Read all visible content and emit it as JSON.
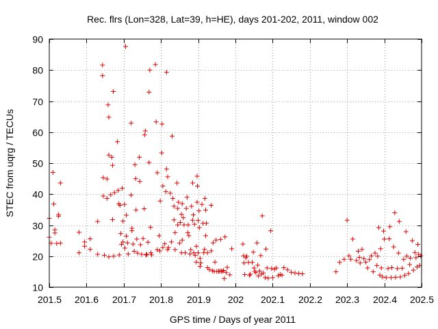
{
  "chart_data": {
    "type": "scatter",
    "title": "Rec. flrs (Lon=328, Lat=39, h=HE), days 201-202, 2011, window 002",
    "xlabel": "GPS time / Days of year 2011",
    "ylabel": "STEC from uqrg / TECUs",
    "xlim": [
      201.5,
      202.5
    ],
    "ylim": [
      10,
      90
    ],
    "xticks": [
      201.5,
      201.6,
      201.7,
      201.8,
      201.9,
      202.0,
      202.1,
      202.2,
      202.3,
      202.4,
      202.5
    ],
    "xtick_labels": [
      "201.5",
      "201.6",
      "201.7",
      "201.8",
      "201.9",
      "202",
      "202.1",
      "202.2",
      "202.3",
      "202.4",
      "202.5"
    ],
    "yticks": [
      10,
      20,
      30,
      40,
      50,
      60,
      70,
      80,
      90
    ],
    "ytick_labels": [
      "10",
      "20",
      "30",
      "40",
      "50",
      "60",
      "70",
      "80",
      "90"
    ],
    "grid": true,
    "marker": "+",
    "color": "#dd0000",
    "series": [
      {
        "name": "STEC",
        "points": [
          [
            201.5,
            32.2
          ],
          [
            201.5,
            26.1
          ],
          [
            201.505,
            24.2
          ],
          [
            201.51,
            47.0
          ],
          [
            201.512,
            36.8
          ],
          [
            201.515,
            28.5
          ],
          [
            201.515,
            27.5
          ],
          [
            201.52,
            24.1
          ],
          [
            201.525,
            33.4
          ],
          [
            201.525,
            32.9
          ],
          [
            201.53,
            43.6
          ],
          [
            201.53,
            24.2
          ],
          [
            201.58,
            27.7
          ],
          [
            201.58,
            21.1
          ],
          [
            201.595,
            24.6
          ],
          [
            201.595,
            23.2
          ],
          [
            201.61,
            25.6
          ],
          [
            201.61,
            22.2
          ],
          [
            201.63,
            31.2
          ],
          [
            201.63,
            20.6
          ],
          [
            201.643,
            81.6
          ],
          [
            201.643,
            78.2
          ],
          [
            201.645,
            45.3
          ],
          [
            201.645,
            39.4
          ],
          [
            201.648,
            20.3
          ],
          [
            201.655,
            44.9
          ],
          [
            201.655,
            38.6
          ],
          [
            201.658,
            68.8
          ],
          [
            201.66,
            64.8
          ],
          [
            201.66,
            52.6
          ],
          [
            201.66,
            19.8
          ],
          [
            201.665,
            39.8
          ],
          [
            201.668,
            51.9
          ],
          [
            201.67,
            49.3
          ],
          [
            201.67,
            31.8
          ],
          [
            201.672,
            73.1
          ],
          [
            201.673,
            20.0
          ],
          [
            201.675,
            40.5
          ],
          [
            201.683,
            56.9
          ],
          [
            201.685,
            41.2
          ],
          [
            201.687,
            36.9
          ],
          [
            201.688,
            20.4
          ],
          [
            201.69,
            36.4
          ],
          [
            201.692,
            27.3
          ],
          [
            201.694,
            23.8
          ],
          [
            201.696,
            41.9
          ],
          [
            201.698,
            31.3
          ],
          [
            201.698,
            24.6
          ],
          [
            201.702,
            36.7
          ],
          [
            201.703,
            22.6
          ],
          [
            201.705,
            87.6
          ],
          [
            201.707,
            33.2
          ],
          [
            201.707,
            26.5
          ],
          [
            201.71,
            24.3
          ],
          [
            201.712,
            20.7
          ],
          [
            201.72,
            62.9
          ],
          [
            201.72,
            39.7
          ],
          [
            201.722,
            29.0
          ],
          [
            201.722,
            28.2
          ],
          [
            201.725,
            23.9
          ],
          [
            201.728,
            21.6
          ],
          [
            201.73,
            49.5
          ],
          [
            201.732,
            45.0
          ],
          [
            201.733,
            34.9
          ],
          [
            201.735,
            25.5
          ],
          [
            201.737,
            21.0
          ],
          [
            201.742,
            51.9
          ],
          [
            201.743,
            44.1
          ],
          [
            201.745,
            23.7
          ],
          [
            201.748,
            20.6
          ],
          [
            201.752,
            25.7
          ],
          [
            201.755,
            35.3
          ],
          [
            201.756,
            59.1
          ],
          [
            201.758,
            60.4
          ],
          [
            201.76,
            20.4
          ],
          [
            201.762,
            20.6
          ],
          [
            201.765,
            24.5
          ],
          [
            201.768,
            72.9
          ],
          [
            201.768,
            50.2
          ],
          [
            201.77,
            80.0
          ],
          [
            201.772,
            29.3
          ],
          [
            201.773,
            21.1
          ],
          [
            201.775,
            20.4
          ],
          [
            201.785,
            81.8
          ],
          [
            201.787,
            63.3
          ],
          [
            201.79,
            46.9
          ],
          [
            201.79,
            22.1
          ],
          [
            201.795,
            26.6
          ],
          [
            201.797,
            21.7
          ],
          [
            201.798,
            37.8
          ],
          [
            201.802,
            53.3
          ],
          [
            201.803,
            62.6
          ],
          [
            201.805,
            42.6
          ],
          [
            201.805,
            22.8
          ],
          [
            201.81,
            24.0
          ],
          [
            201.813,
            40.8
          ],
          [
            201.815,
            79.3
          ],
          [
            201.815,
            48.1
          ],
          [
            201.818,
            45.6
          ],
          [
            201.818,
            22.1
          ],
          [
            201.82,
            22.8
          ],
          [
            201.825,
            40.3
          ],
          [
            201.828,
            24.6
          ],
          [
            201.83,
            58.7
          ],
          [
            201.832,
            38.6
          ],
          [
            201.835,
            36.1
          ],
          [
            201.835,
            31.7
          ],
          [
            201.838,
            27.6
          ],
          [
            201.838,
            22.1
          ],
          [
            201.843,
            43.6
          ],
          [
            201.845,
            35.4
          ],
          [
            201.845,
            30.1
          ],
          [
            201.847,
            37.4
          ],
          [
            201.85,
            24.2
          ],
          [
            201.852,
            30.9
          ],
          [
            201.855,
            33.5
          ],
          [
            201.855,
            21.1
          ],
          [
            201.857,
            36.9
          ],
          [
            201.857,
            25.2
          ],
          [
            201.86,
            32.4
          ],
          [
            201.862,
            30.1
          ],
          [
            201.865,
            21.1
          ],
          [
            201.868,
            35.4
          ],
          [
            201.87,
            39.0
          ],
          [
            201.872,
            27.6
          ],
          [
            201.873,
            30.1
          ],
          [
            201.875,
            26.6
          ],
          [
            201.878,
            20.7
          ],
          [
            201.88,
            22.1
          ],
          [
            201.882,
            36.1
          ],
          [
            201.885,
            31.6
          ],
          [
            201.885,
            43.6
          ],
          [
            201.887,
            33.3
          ],
          [
            201.888,
            21.1
          ],
          [
            201.89,
            30.3
          ],
          [
            201.892,
            20.3
          ],
          [
            201.895,
            18.1
          ],
          [
            201.895,
            23.2
          ],
          [
            201.897,
            45.8
          ],
          [
            201.897,
            37.4
          ],
          [
            201.898,
            42.6
          ],
          [
            201.9,
            31.5
          ],
          [
            201.9,
            21.1
          ],
          [
            201.902,
            34.6
          ],
          [
            201.903,
            29.2
          ],
          [
            201.905,
            19.3
          ],
          [
            201.905,
            16.7
          ],
          [
            201.907,
            17.8
          ],
          [
            201.91,
            36.7
          ],
          [
            201.913,
            30.6
          ],
          [
            201.915,
            21.1
          ],
          [
            201.917,
            22.2
          ],
          [
            201.918,
            38.6
          ],
          [
            201.92,
            34.9
          ],
          [
            201.92,
            26.6
          ],
          [
            201.922,
            30.6
          ],
          [
            201.925,
            21.1
          ],
          [
            201.925,
            16.3
          ],
          [
            201.93,
            15.7
          ],
          [
            201.935,
            36.4
          ],
          [
            201.935,
            21.7
          ],
          [
            201.938,
            15.3
          ],
          [
            201.94,
            24.3
          ],
          [
            201.943,
            15.1
          ],
          [
            201.945,
            18.1
          ],
          [
            201.948,
            25.2
          ],
          [
            201.95,
            15.1
          ],
          [
            201.955,
            15.1
          ],
          [
            201.958,
            15.2
          ],
          [
            201.96,
            25.4
          ],
          [
            201.962,
            15.2
          ],
          [
            201.965,
            15.1
          ],
          [
            201.968,
            15.4
          ],
          [
            201.97,
            12.8
          ],
          [
            201.972,
            26.2
          ],
          [
            201.975,
            14.7
          ],
          [
            201.978,
            16.4
          ],
          [
            201.985,
            14.0
          ],
          [
            201.99,
            22.4
          ],
          [
            202.02,
            23.9
          ],
          [
            202.022,
            20.1
          ],
          [
            202.023,
            17.8
          ],
          [
            202.025,
            14.1
          ],
          [
            202.028,
            19.5
          ],
          [
            202.03,
            20.0
          ],
          [
            202.035,
            18.0
          ],
          [
            202.038,
            13.8
          ],
          [
            202.04,
            14.2
          ],
          [
            202.045,
            18.0
          ],
          [
            202.048,
            21.3
          ],
          [
            202.05,
            16.2
          ],
          [
            202.052,
            15.1
          ],
          [
            202.055,
            14.7
          ],
          [
            202.058,
            24.3
          ],
          [
            202.06,
            17.1
          ],
          [
            202.062,
            13.6
          ],
          [
            202.065,
            15.2
          ],
          [
            202.068,
            20.2
          ],
          [
            202.07,
            14.2
          ],
          [
            202.072,
            33.0
          ],
          [
            202.075,
            14.6
          ],
          [
            202.08,
            13.1
          ],
          [
            202.082,
            22.3
          ],
          [
            202.085,
            16.2
          ],
          [
            202.088,
            12.9
          ],
          [
            202.095,
            28.2
          ],
          [
            202.097,
            16.0
          ],
          [
            202.1,
            13.1
          ],
          [
            202.105,
            15.8
          ],
          [
            202.11,
            16.2
          ],
          [
            202.115,
            13.7
          ],
          [
            202.12,
            14.1
          ],
          [
            202.125,
            13.9
          ],
          [
            202.13,
            16.3
          ],
          [
            202.14,
            15.6
          ],
          [
            202.15,
            14.8
          ],
          [
            202.16,
            14.6
          ],
          [
            202.17,
            14.4
          ],
          [
            202.18,
            14.3
          ],
          [
            202.27,
            15.0
          ],
          [
            202.28,
            18.0
          ],
          [
            202.292,
            19.0
          ],
          [
            202.3,
            31.6
          ],
          [
            202.305,
            20.1
          ],
          [
            202.31,
            19.0
          ],
          [
            202.315,
            25.5
          ],
          [
            202.325,
            18.6
          ],
          [
            202.33,
            21.6
          ],
          [
            202.333,
            19.6
          ],
          [
            202.335,
            17.8
          ],
          [
            202.34,
            22.2
          ],
          [
            202.345,
            19.2
          ],
          [
            202.35,
            18.1
          ],
          [
            202.355,
            16.2
          ],
          [
            202.36,
            18.9
          ],
          [
            202.365,
            20.1
          ],
          [
            202.37,
            15.0
          ],
          [
            202.375,
            21.0
          ],
          [
            202.38,
            17.0
          ],
          [
            202.382,
            20.0
          ],
          [
            202.385,
            29.2
          ],
          [
            202.388,
            13.9
          ],
          [
            202.39,
            22.4
          ],
          [
            202.392,
            16.2
          ],
          [
            202.395,
            13.3
          ],
          [
            202.398,
            28.1
          ],
          [
            202.4,
            25.5
          ],
          [
            202.405,
            13.1
          ],
          [
            202.41,
            16.0
          ],
          [
            202.413,
            25.6
          ],
          [
            202.415,
            29.5
          ],
          [
            202.418,
            13.1
          ],
          [
            202.42,
            16.3
          ],
          [
            202.425,
            23.0
          ],
          [
            202.428,
            34.0
          ],
          [
            202.43,
            13.2
          ],
          [
            202.435,
            16.0
          ],
          [
            202.438,
            21.0
          ],
          [
            202.44,
            31.2
          ],
          [
            202.443,
            13.3
          ],
          [
            202.448,
            16.1
          ],
          [
            202.452,
            19.0
          ],
          [
            202.455,
            13.8
          ],
          [
            202.458,
            27.9
          ],
          [
            202.46,
            20.0
          ],
          [
            202.465,
            14.4
          ],
          [
            202.468,
            17.3
          ],
          [
            202.47,
            19.4
          ],
          [
            202.475,
            25.0
          ],
          [
            202.478,
            15.5
          ],
          [
            202.482,
            21.2
          ],
          [
            202.485,
            19.5
          ],
          [
            202.488,
            16.5
          ],
          [
            202.49,
            23.8
          ],
          [
            202.492,
            20.6
          ],
          [
            202.495,
            17.0
          ],
          [
            202.498,
            20.1
          ]
        ]
      }
    ]
  }
}
